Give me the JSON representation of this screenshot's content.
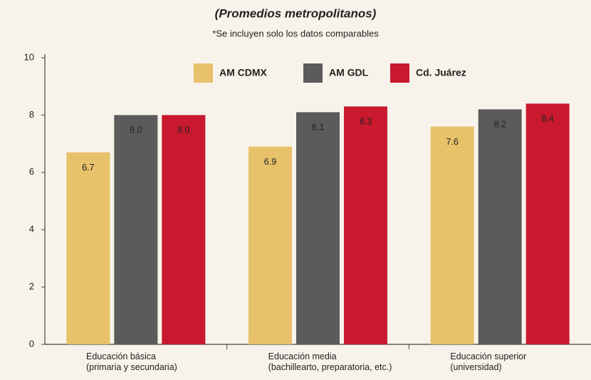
{
  "chart_data": {
    "type": "bar",
    "title": "(Promedios metropolitanos)",
    "subtitle": "*Se incluyen solo los datos comparables",
    "categories": [
      "Educación básica\n(primaria y secundaria)",
      "Educación media\n(bachillearto, preparatoria, etc.)",
      "Educación superior\n(universidad)"
    ],
    "series": [
      {
        "name": "AM CDMX",
        "color": "#e8c16b",
        "values": [
          6.7,
          6.9,
          7.6
        ],
        "value_labels": [
          "6.7",
          "6.9",
          "7.6"
        ]
      },
      {
        "name": "AM GDL",
        "color": "#5b5b5b",
        "values": [
          8.0,
          8.1,
          8.2
        ],
        "value_labels": [
          "8.0",
          "8.1",
          "8.2"
        ]
      },
      {
        "name": "Cd. Juárez",
        "color": "#c8192e",
        "values": [
          8.0,
          8.3,
          8.4
        ],
        "value_labels": [
          "8.0",
          "8.3",
          "8.4"
        ]
      }
    ],
    "ylim": [
      0,
      10
    ],
    "yticks": [
      0,
      2,
      4,
      6,
      8,
      10
    ],
    "legend": "top"
  }
}
